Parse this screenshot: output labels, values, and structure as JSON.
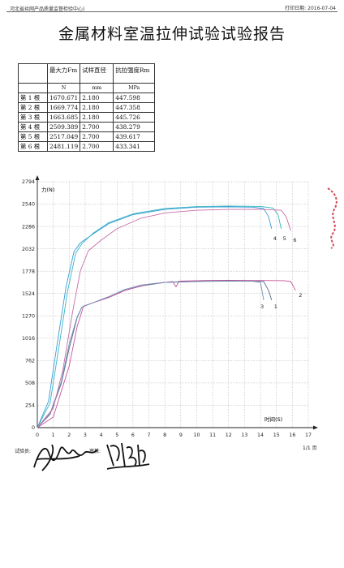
{
  "header": {
    "org": "河北省丝网产品质量监督检验中心)",
    "date_label": "打印日期:",
    "date_value": "2016-07-04"
  },
  "title": "金属材料室温拉伸试验试验报告",
  "table": {
    "headers": [
      "最大力Fm",
      "试样直径",
      "抗拉强度Rm"
    ],
    "units": [
      "N",
      "mm",
      "MPa"
    ],
    "rows": [
      {
        "label": "第 1 根",
        "fm": "1670.671",
        "d": "2.180",
        "rm": "447.598"
      },
      {
        "label": "第 2 根",
        "fm": "1669.774",
        "d": "2.180",
        "rm": "447.358"
      },
      {
        "label": "第 3 根",
        "fm": "1663.685",
        "d": "2.180",
        "rm": "445.726"
      },
      {
        "label": "第 4 根",
        "fm": "2509.389",
        "d": "2.700",
        "rm": "438.279"
      },
      {
        "label": "第 5 根",
        "fm": "2517.049",
        "d": "2.700",
        "rm": "439.617"
      },
      {
        "label": "第 6 根",
        "fm": "2481.119",
        "d": "2.700",
        "rm": "433.341"
      }
    ]
  },
  "chart_data": {
    "type": "line",
    "ylabel": "力(N)",
    "xlabel": "时间(S)",
    "xlim": [
      0,
      17
    ],
    "ylim": [
      0,
      2794
    ],
    "y_ticks": [
      "0",
      "254",
      "508",
      "762",
      "1016",
      "1270",
      "1524",
      "1778",
      "2032",
      "2286",
      "2540",
      "2794"
    ],
    "x_ticks": [
      "0",
      "1",
      "2",
      "3",
      "4",
      "5",
      "6",
      "7",
      "8",
      "9",
      "10",
      "11",
      "12",
      "13",
      "14",
      "15",
      "16",
      "17"
    ],
    "grid": true,
    "series": [
      {
        "name": "1",
        "color": "#5a6e8c",
        "x": [
          0,
          0.8,
          1.5,
          2,
          2.5,
          2.8,
          3.5,
          4.5,
          5.5,
          6.5,
          8,
          10,
          12,
          13.5,
          14.2,
          14.5,
          14.7
        ],
        "y": [
          0,
          150,
          500,
          900,
          1250,
          1370,
          1420,
          1480,
          1560,
          1610,
          1650,
          1670,
          1675,
          1671,
          1660,
          1560,
          1450
        ]
      },
      {
        "name": "2",
        "color": "#c8529a",
        "x": [
          0,
          1,
          2,
          2.5,
          2.9,
          3.5,
          4.5,
          5.5,
          7,
          8.5,
          8.7,
          8.9,
          10,
          12,
          14,
          15.5,
          15.9,
          16.2
        ],
        "y": [
          0,
          120,
          700,
          1150,
          1380,
          1420,
          1480,
          1560,
          1630,
          1660,
          1600,
          1665,
          1670,
          1672,
          1672,
          1670,
          1660,
          1560
        ]
      },
      {
        "name": "3",
        "color": "#6e8fb4",
        "x": [
          0,
          0.8,
          1.5,
          2,
          2.5,
          2.8,
          3.5,
          4.5,
          5.5,
          6.5,
          8,
          10,
          12,
          13.5,
          14,
          14.2
        ],
        "y": [
          0,
          160,
          520,
          950,
          1260,
          1370,
          1420,
          1490,
          1570,
          1620,
          1650,
          1660,
          1664,
          1663,
          1650,
          1450
        ]
      },
      {
        "name": "4",
        "color": "#3a9ad6",
        "x": [
          0,
          0.7,
          1.2,
          1.8,
          2.3,
          2.7,
          3.5,
          4.5,
          6,
          8,
          10,
          12,
          13.5,
          14.2,
          14.5,
          14.7
        ],
        "y": [
          0,
          300,
          900,
          1600,
          2000,
          2100,
          2200,
          2320,
          2420,
          2480,
          2505,
          2509,
          2505,
          2490,
          2400,
          2260
        ]
      },
      {
        "name": "5",
        "color": "#35b5c6",
        "x": [
          0,
          0.8,
          1.3,
          1.9,
          2.4,
          2.8,
          3.5,
          4.5,
          6,
          8,
          10,
          12,
          14,
          14.8,
          15.1,
          15.3
        ],
        "y": [
          0,
          280,
          850,
          1550,
          1980,
          2090,
          2210,
          2330,
          2430,
          2490,
          2512,
          2517,
          2514,
          2495,
          2420,
          2260
        ]
      },
      {
        "name": "6",
        "color": "#c76ea8",
        "x": [
          0,
          1,
          1.6,
          2.2,
          2.7,
          3.2,
          4,
          5,
          6.5,
          8,
          10,
          12,
          14,
          15.3,
          15.6,
          15.9
        ],
        "y": [
          0,
          220,
          650,
          1300,
          1780,
          2010,
          2130,
          2260,
          2380,
          2440,
          2470,
          2480,
          2481,
          2470,
          2400,
          2240
        ]
      }
    ]
  },
  "footer": {
    "tester_label": "试验员:",
    "reviewer_label": "审核:",
    "page_label": "1/1 页"
  }
}
